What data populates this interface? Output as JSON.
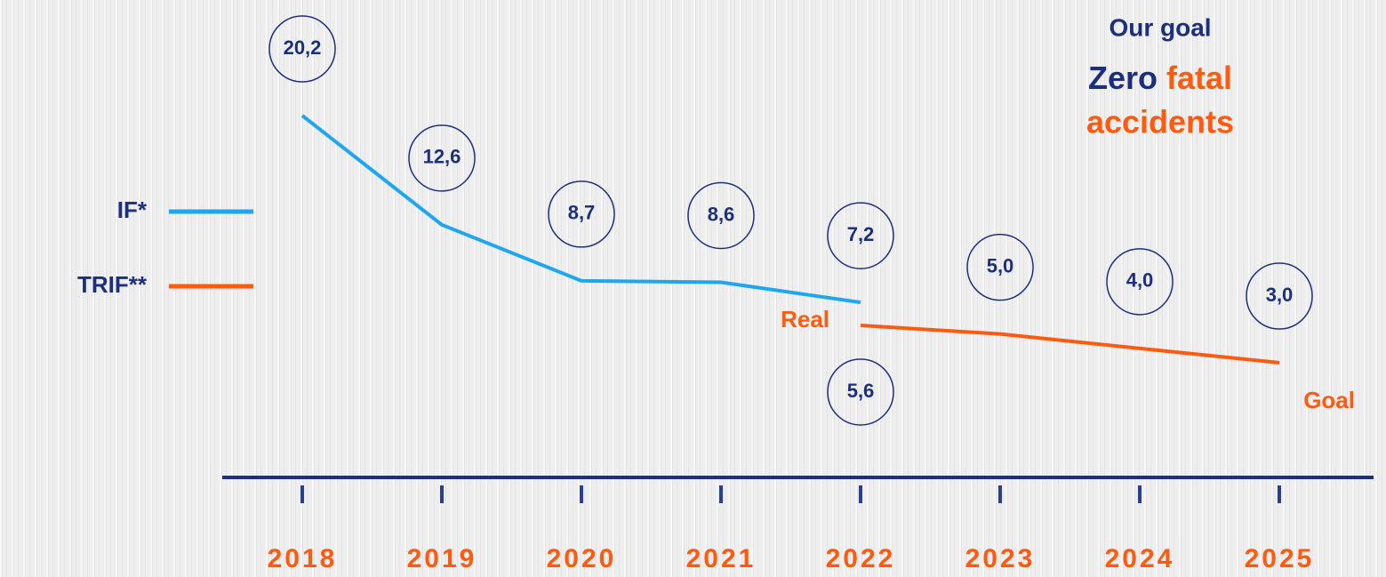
{
  "chart_data": {
    "type": "line",
    "title_lines": {
      "line1": "Our goal",
      "zero": "Zero",
      "fatal": "fatal",
      "accidents": "accidents"
    },
    "categories": [
      "2018",
      "2019",
      "2020",
      "2021",
      "2022",
      "2023",
      "2024",
      "2025"
    ],
    "series": [
      {
        "name": "IF*",
        "color": "#1ea7f0",
        "values": [
          20.2,
          12.6,
          8.7,
          8.6,
          7.2,
          null,
          null,
          null
        ],
        "value_labels": [
          "20,2",
          "12,6",
          "8,7",
          "8,6",
          "7,2",
          null,
          null,
          null
        ]
      },
      {
        "name": "TRIF**",
        "color": "#ff5a0f",
        "values": [
          null,
          null,
          null,
          null,
          5.6,
          5.0,
          4.0,
          3.0
        ],
        "value_labels": [
          null,
          null,
          null,
          null,
          "5,6",
          "5,0",
          "4,0",
          "3,0"
        ],
        "start_label": "Real",
        "end_label": "Goal"
      }
    ]
  }
}
